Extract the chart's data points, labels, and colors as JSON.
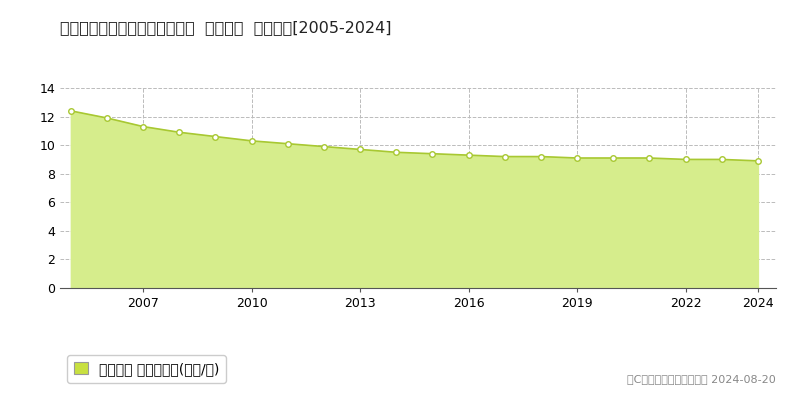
{
  "title": "新潟県阿賀野市緑岡３番８６外  地価公示  地価推移[2005-2024]",
  "years": [
    2005,
    2006,
    2007,
    2008,
    2009,
    2010,
    2011,
    2012,
    2013,
    2014,
    2015,
    2016,
    2017,
    2018,
    2019,
    2020,
    2021,
    2022,
    2023,
    2024
  ],
  "values": [
    12.4,
    11.9,
    11.3,
    10.9,
    10.6,
    10.3,
    10.1,
    9.9,
    9.7,
    9.5,
    9.4,
    9.3,
    9.2,
    9.2,
    9.1,
    9.1,
    9.1,
    9.0,
    9.0,
    8.9
  ],
  "line_color": "#a8c832",
  "fill_color": "#d6ed8c",
  "marker_facecolor": "#ffffff",
  "marker_edgecolor": "#a8c832",
  "background_color": "#ffffff",
  "grid_color": "#bbbbbb",
  "ylim": [
    0,
    14
  ],
  "yticks": [
    0,
    2,
    4,
    6,
    8,
    10,
    12,
    14
  ],
  "xtick_labels": [
    "2007",
    "2010",
    "2013",
    "2016",
    "2019",
    "2022",
    "2024"
  ],
  "legend_label": "地価公示 平均坪単価(万円/坪)",
  "legend_marker_color": "#c8e040",
  "copyright_text": "（C）土地価格ドットコム 2024-08-20",
  "title_fontsize": 11.5,
  "axis_fontsize": 9,
  "legend_fontsize": 9,
  "copyright_fontsize": 8
}
